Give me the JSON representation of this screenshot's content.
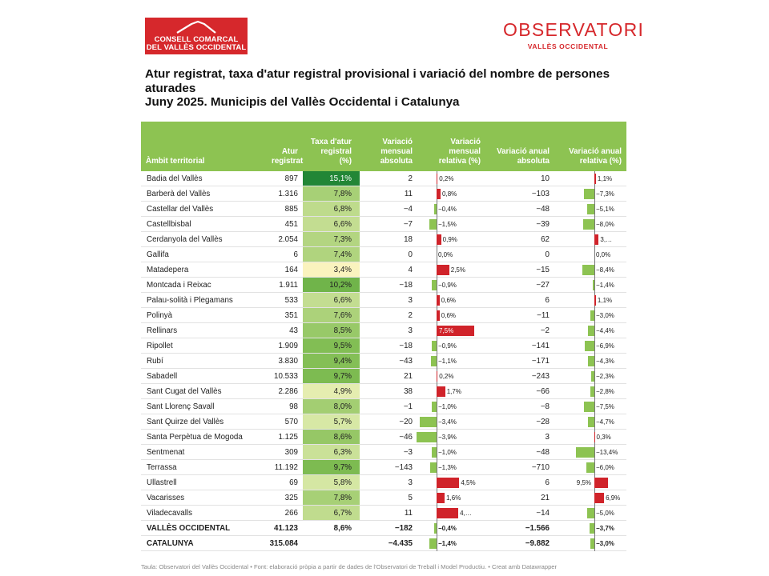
{
  "logos": {
    "left_line1": "CONSELL COMARCAL",
    "left_line2": "DEL VALLÈS OCCIDENTAL",
    "right_big": "OBSERVATORI",
    "right_small": "VALLÈS OCCIDENTAL"
  },
  "title": {
    "line1": "Atur registrat, taxa d'atur registral provisional i variació del nombre de persones aturades",
    "line2": "Juny 2025. Municipis del Vallès Occidental i Catalunya"
  },
  "headers": {
    "ambit": "Àmbit territorial",
    "atur": "Atur registrat",
    "taxa": "Taxa d'atur registral (%)",
    "var_mens_abs": "Variació mensual absoluta",
    "var_mens_rel": "Variació mensual relativa (%)",
    "var_anual_abs": "Variació anual absoluta",
    "var_anual_rel": "Variació anual relativa (%)"
  },
  "colors": {
    "header_green": "#8dc352",
    "bar_negative": "#8dc352",
    "bar_positive": "#d0232a",
    "brand_red": "#d6282c"
  },
  "rows": [
    {
      "name": "Badia del Vallès",
      "atur": "897",
      "taxa": "15,1%",
      "taxa_value": 15.1,
      "vma": "2",
      "vmr": "0,2%",
      "vmr_value": 0.2,
      "vaa": "10",
      "var": "1,1%",
      "var_value": 1.1
    },
    {
      "name": "Barberà del Vallès",
      "atur": "1.316",
      "taxa": "7,8%",
      "taxa_value": 7.8,
      "vma": "11",
      "vmr": "0,8%",
      "vmr_value": 0.8,
      "vaa": "−103",
      "var": "−7,3%",
      "var_value": -7.3
    },
    {
      "name": "Castellar del Vallès",
      "atur": "885",
      "taxa": "6,8%",
      "taxa_value": 6.8,
      "vma": "−4",
      "vmr": "−0,4%",
      "vmr_value": -0.4,
      "vaa": "−48",
      "var": "−5,1%",
      "var_value": -5.1
    },
    {
      "name": "Castellbisbal",
      "atur": "451",
      "taxa": "6,6%",
      "taxa_value": 6.6,
      "vma": "−7",
      "vmr": "−1,5%",
      "vmr_value": -1.5,
      "vaa": "−39",
      "var": "−8,0%",
      "var_value": -8.0
    },
    {
      "name": "Cerdanyola del Vallès",
      "atur": "2.054",
      "taxa": "7,3%",
      "taxa_value": 7.3,
      "vma": "18",
      "vmr": "0,9%",
      "vmr_value": 0.9,
      "vaa": "62",
      "var": "3,…",
      "var_value": 3.1
    },
    {
      "name": "Gallifa",
      "atur": "6",
      "taxa": "7,4%",
      "taxa_value": 7.4,
      "vma": "0",
      "vmr": "0,0%",
      "vmr_value": 0.0,
      "vaa": "0",
      "var": "0,0%",
      "var_value": 0.0
    },
    {
      "name": "Matadepera",
      "atur": "164",
      "taxa": "3,4%",
      "taxa_value": 3.4,
      "vma": "4",
      "vmr": "2,5%",
      "vmr_value": 2.5,
      "vaa": "−15",
      "var": "−8,4%",
      "var_value": -8.4
    },
    {
      "name": "Montcada i Reixac",
      "atur": "1.911",
      "taxa": "10,2%",
      "taxa_value": 10.2,
      "vma": "−18",
      "vmr": "−0,9%",
      "vmr_value": -0.9,
      "vaa": "−27",
      "var": "−1,4%",
      "var_value": -1.4
    },
    {
      "name": "Palau-solità i Plegamans",
      "atur": "533",
      "taxa": "6,6%",
      "taxa_value": 6.6,
      "vma": "3",
      "vmr": "0,6%",
      "vmr_value": 0.6,
      "vaa": "6",
      "var": "1,1%",
      "var_value": 1.1
    },
    {
      "name": "Polinyà",
      "atur": "351",
      "taxa": "7,6%",
      "taxa_value": 7.6,
      "vma": "2",
      "vmr": "0,6%",
      "vmr_value": 0.6,
      "vaa": "−11",
      "var": "−3,0%",
      "var_value": -3.0
    },
    {
      "name": "Rellinars",
      "atur": "43",
      "taxa": "8,5%",
      "taxa_value": 8.5,
      "vma": "3",
      "vmr": "7,5%",
      "vmr_value": 7.5,
      "vaa": "−2",
      "var": "−4,4%",
      "var_value": -4.4
    },
    {
      "name": "Ripollet",
      "atur": "1.909",
      "taxa": "9,5%",
      "taxa_value": 9.5,
      "vma": "−18",
      "vmr": "−0,9%",
      "vmr_value": -0.9,
      "vaa": "−141",
      "var": "−6,9%",
      "var_value": -6.9
    },
    {
      "name": "Rubí",
      "atur": "3.830",
      "taxa": "9,4%",
      "taxa_value": 9.4,
      "vma": "−43",
      "vmr": "−1,1%",
      "vmr_value": -1.1,
      "vaa": "−171",
      "var": "−4,3%",
      "var_value": -4.3
    },
    {
      "name": "Sabadell",
      "atur": "10.533",
      "taxa": "9,7%",
      "taxa_value": 9.7,
      "vma": "21",
      "vmr": "0,2%",
      "vmr_value": 0.2,
      "vaa": "−243",
      "var": "−2,3%",
      "var_value": -2.3
    },
    {
      "name": "Sant Cugat del Vallès",
      "atur": "2.286",
      "taxa": "4,9%",
      "taxa_value": 4.9,
      "vma": "38",
      "vmr": "1,7%",
      "vmr_value": 1.7,
      "vaa": "−66",
      "var": "−2,8%",
      "var_value": -2.8
    },
    {
      "name": "Sant Llorenç Savall",
      "atur": "98",
      "taxa": "8,0%",
      "taxa_value": 8.0,
      "vma": "−1",
      "vmr": "−1,0%",
      "vmr_value": -1.0,
      "vaa": "−8",
      "var": "−7,5%",
      "var_value": -7.5
    },
    {
      "name": "Sant Quirze del Vallès",
      "atur": "570",
      "taxa": "5,7%",
      "taxa_value": 5.7,
      "vma": "−20",
      "vmr": "−3,4%",
      "vmr_value": -3.4,
      "vaa": "−28",
      "var": "−4,7%",
      "var_value": -4.7
    },
    {
      "name": "Santa Perpètua de Mogoda",
      "atur": "1.125",
      "taxa": "8,6%",
      "taxa_value": 8.6,
      "vma": "−46",
      "vmr": "−3,9%",
      "vmr_value": -3.9,
      "vaa": "3",
      "var": "0,3%",
      "var_value": 0.3
    },
    {
      "name": "Sentmenat",
      "atur": "309",
      "taxa": "6,3%",
      "taxa_value": 6.3,
      "vma": "−3",
      "vmr": "−1,0%",
      "vmr_value": -1.0,
      "vaa": "−48",
      "var": "−13,4%",
      "var_value": -13.4
    },
    {
      "name": "Terrassa",
      "atur": "11.192",
      "taxa": "9,7%",
      "taxa_value": 9.7,
      "vma": "−143",
      "vmr": "−1,3%",
      "vmr_value": -1.3,
      "vaa": "−710",
      "var": "−6,0%",
      "var_value": -6.0
    },
    {
      "name": "Ullastrell",
      "atur": "69",
      "taxa": "5,8%",
      "taxa_value": 5.8,
      "vma": "3",
      "vmr": "4,5%",
      "vmr_value": 4.5,
      "vaa": "6",
      "var": "9,5%",
      "var_value": 9.5
    },
    {
      "name": "Vacarisses",
      "atur": "325",
      "taxa": "7,8%",
      "taxa_value": 7.8,
      "vma": "5",
      "vmr": "1,6%",
      "vmr_value": 1.6,
      "vaa": "21",
      "var": "6,9%",
      "var_value": 6.9
    },
    {
      "name": "Viladecavalls",
      "atur": "266",
      "taxa": "6,7%",
      "taxa_value": 6.7,
      "vma": "11",
      "vmr": "4,…",
      "vmr_value": 4.3,
      "vaa": "−14",
      "var": "−5,0%",
      "var_value": -5.0
    },
    {
      "name": "VALLÈS OCCIDENTAL",
      "atur": "41.123",
      "taxa": "8,6%",
      "taxa_value": 8.6,
      "vma": "−182",
      "vmr": "−0,4%",
      "vmr_value": -0.4,
      "vaa": "−1.566",
      "var": "−3,7%",
      "var_value": -3.7,
      "total": true
    },
    {
      "name": "CATALUNYA",
      "atur": "315.084",
      "taxa": "",
      "taxa_value": null,
      "vma": "−4.435",
      "vmr": "−1,4%",
      "vmr_value": -1.4,
      "vaa": "−9.882",
      "var": "−3,0%",
      "var_value": -3.0,
      "total": true
    }
  ],
  "footer": "Taula: Observatori del Vallès Occidental • Font: elaboració pròpia a partir de dades de l'Observatori de Treball i Model Productiu. • Creat amb Datawrapper"
}
